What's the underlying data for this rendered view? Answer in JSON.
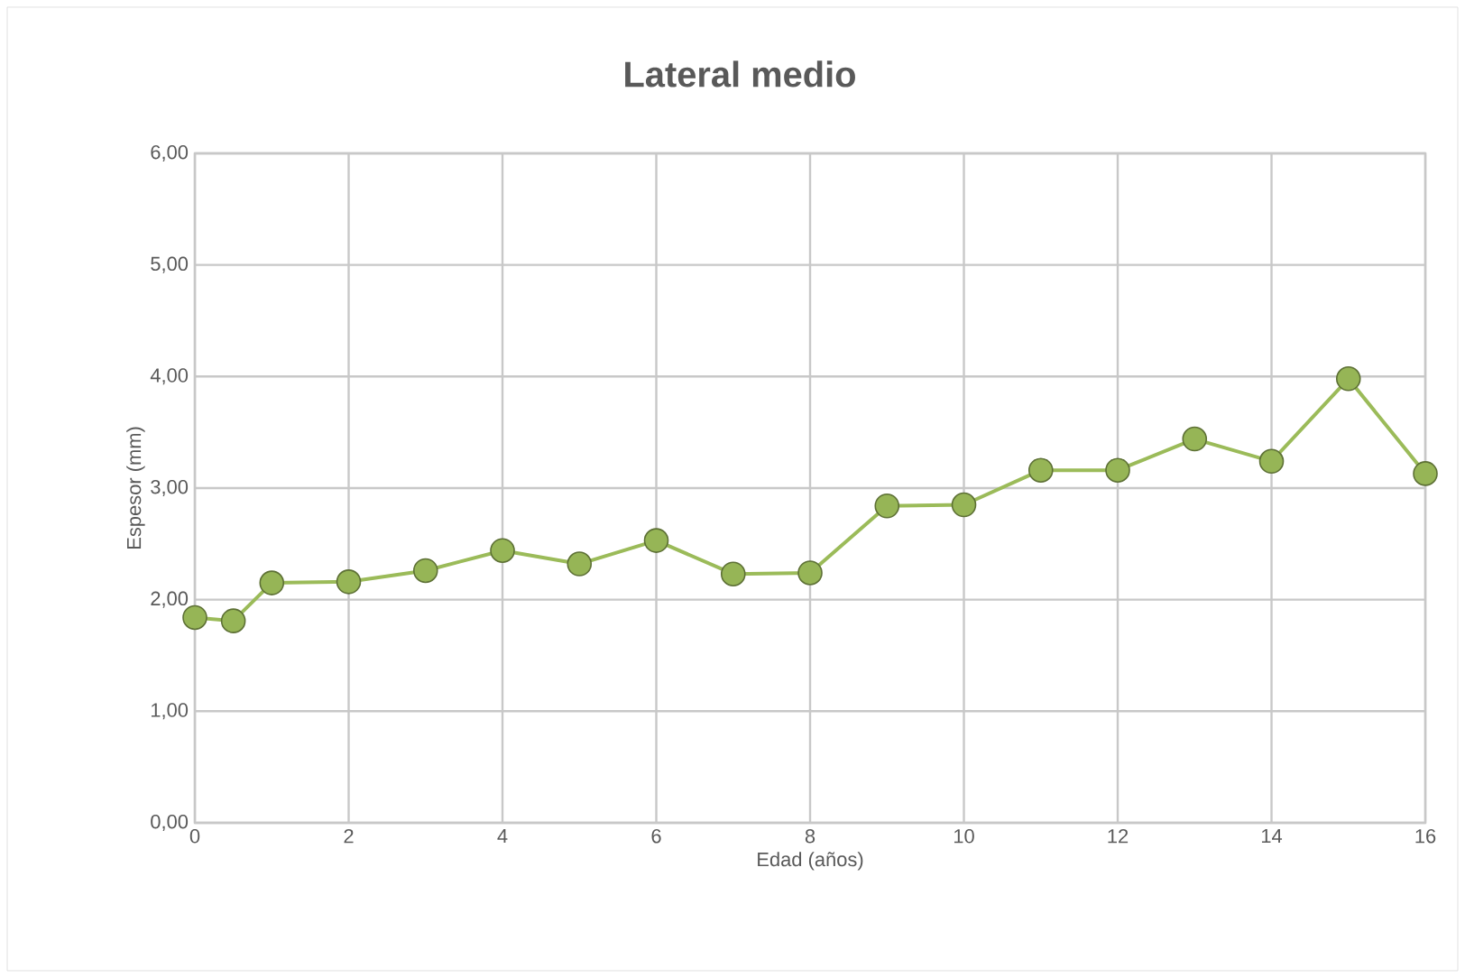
{
  "chart_data": {
    "type": "line",
    "title": "Lateral medio",
    "xlabel": "Edad (años)",
    "ylabel": "Espesor (mm)",
    "x": [
      0,
      0.5,
      1,
      2,
      3,
      4,
      5,
      6,
      7,
      8,
      9,
      10,
      11,
      12,
      13,
      14,
      15,
      16
    ],
    "series": [
      {
        "color": "#9bbb59",
        "values": [
          1.84,
          1.81,
          2.15,
          2.16,
          2.26,
          2.44,
          2.32,
          2.53,
          2.23,
          2.24,
          2.84,
          2.85,
          3.16,
          3.16,
          3.44,
          3.24,
          3.98,
          3.13
        ]
      }
    ],
    "xlim": [
      0,
      16
    ],
    "xticks": [
      0,
      2,
      4,
      6,
      8,
      10,
      12,
      14,
      16
    ],
    "ylim": [
      0,
      6
    ],
    "yticks": [
      {
        "value": 0,
        "label": "0,00"
      },
      {
        "value": 1,
        "label": "1,00"
      },
      {
        "value": 2,
        "label": "2,00"
      },
      {
        "value": 3,
        "label": "3,00"
      },
      {
        "value": 4,
        "label": "4,00"
      },
      {
        "value": 5,
        "label": "5,00"
      },
      {
        "value": 6,
        "label": "6,00"
      }
    ],
    "grid": true,
    "marker": "circle",
    "line_style": "solid"
  }
}
